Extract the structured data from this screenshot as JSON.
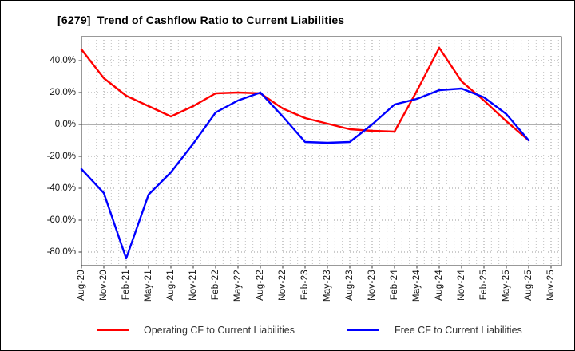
{
  "chart_data": {
    "type": "line",
    "title": "[6279]  Trend of Cashflow Ratio to Current Liabilities",
    "categories": [
      "Aug-20",
      "Nov-20",
      "Feb-21",
      "May-21",
      "Aug-21",
      "Nov-21",
      "Feb-22",
      "May-22",
      "Aug-22",
      "Nov-22",
      "Feb-23",
      "May-23",
      "Aug-23",
      "Nov-23",
      "Feb-24",
      "May-24",
      "Aug-24",
      "Nov-24",
      "Feb-25",
      "May-25",
      "Aug-25",
      "Nov-25"
    ],
    "series": [
      {
        "name": "Operating CF to Current Liabilities",
        "color": "#ff0000",
        "values": [
          47,
          29,
          18,
          11.5,
          5,
          11.5,
          19.5,
          20,
          19.5,
          10,
          4,
          0.5,
          -3,
          -4,
          -4.5,
          21,
          48,
          27,
          15,
          2,
          -10,
          null
        ]
      },
      {
        "name": "Free CF to Current Liabilities",
        "color": "#0000ff",
        "values": [
          -28,
          -43,
          -84,
          -44,
          -30,
          -12,
          7.5,
          15,
          20,
          5,
          -11,
          -11.5,
          -11,
          0,
          12.5,
          16,
          21.5,
          22.5,
          17,
          6.5,
          -10,
          null
        ]
      }
    ],
    "y_ticks": [
      {
        "label": "40.0%",
        "value": 40
      },
      {
        "label": "20.0%",
        "value": 20
      },
      {
        "label": "0.0%",
        "value": 0
      },
      {
        "label": "-20.0%",
        "value": -20
      },
      {
        "label": "-40.0%",
        "value": -40
      },
      {
        "label": "-60.0%",
        "value": -60
      },
      {
        "label": "-80.0%",
        "value": -80
      }
    ],
    "ylim": [
      -88.5,
      55
    ],
    "xlabel": "",
    "ylabel": "",
    "grid": "dotted",
    "zero_line": true,
    "legend_position": "bottom",
    "colors": {
      "grid_major": "#9a9a9a",
      "grid_minor": "#c2c2c2",
      "zero_line": "#808080",
      "spine": "#333333",
      "tick_text": "#111111",
      "legend_text": "#333333"
    }
  }
}
